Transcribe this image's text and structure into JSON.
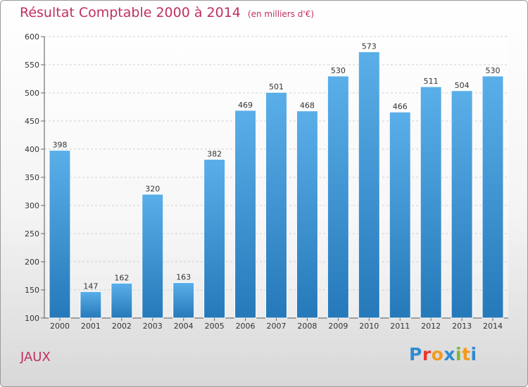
{
  "title": "Résultat Comptable 2000 à 2014",
  "unit_note": "(en milliers d'€)",
  "place_name": "JAUX",
  "logo": {
    "letters": [
      "P",
      "r",
      "o",
      "x",
      "i",
      "t",
      "i"
    ],
    "colors": [
      "#2e8bd2",
      "#e8392f",
      "#f29a1f",
      "#2e8bd2",
      "#7cb82f",
      "#f29a1f",
      "#2e8bd2"
    ]
  },
  "colors": {
    "bar_top": "#5aafe9",
    "bar_bottom": "#2679b9",
    "title": "#c0305e"
  },
  "chart_data": {
    "type": "bar",
    "title": "Résultat Comptable 2000 à 2014",
    "ylabel": "en milliers d'€",
    "xlabel": "",
    "categories": [
      "2000",
      "2001",
      "2002",
      "2003",
      "2004",
      "2005",
      "2006",
      "2007",
      "2008",
      "2009",
      "2010",
      "2011",
      "2012",
      "2013",
      "2014"
    ],
    "values": [
      398,
      147,
      162,
      320,
      163,
      382,
      469,
      501,
      468,
      530,
      573,
      466,
      511,
      504,
      530
    ],
    "ylim": [
      100,
      600
    ],
    "yticks": [
      100,
      150,
      200,
      250,
      300,
      350,
      400,
      450,
      500,
      550,
      600
    ],
    "grid": true
  }
}
